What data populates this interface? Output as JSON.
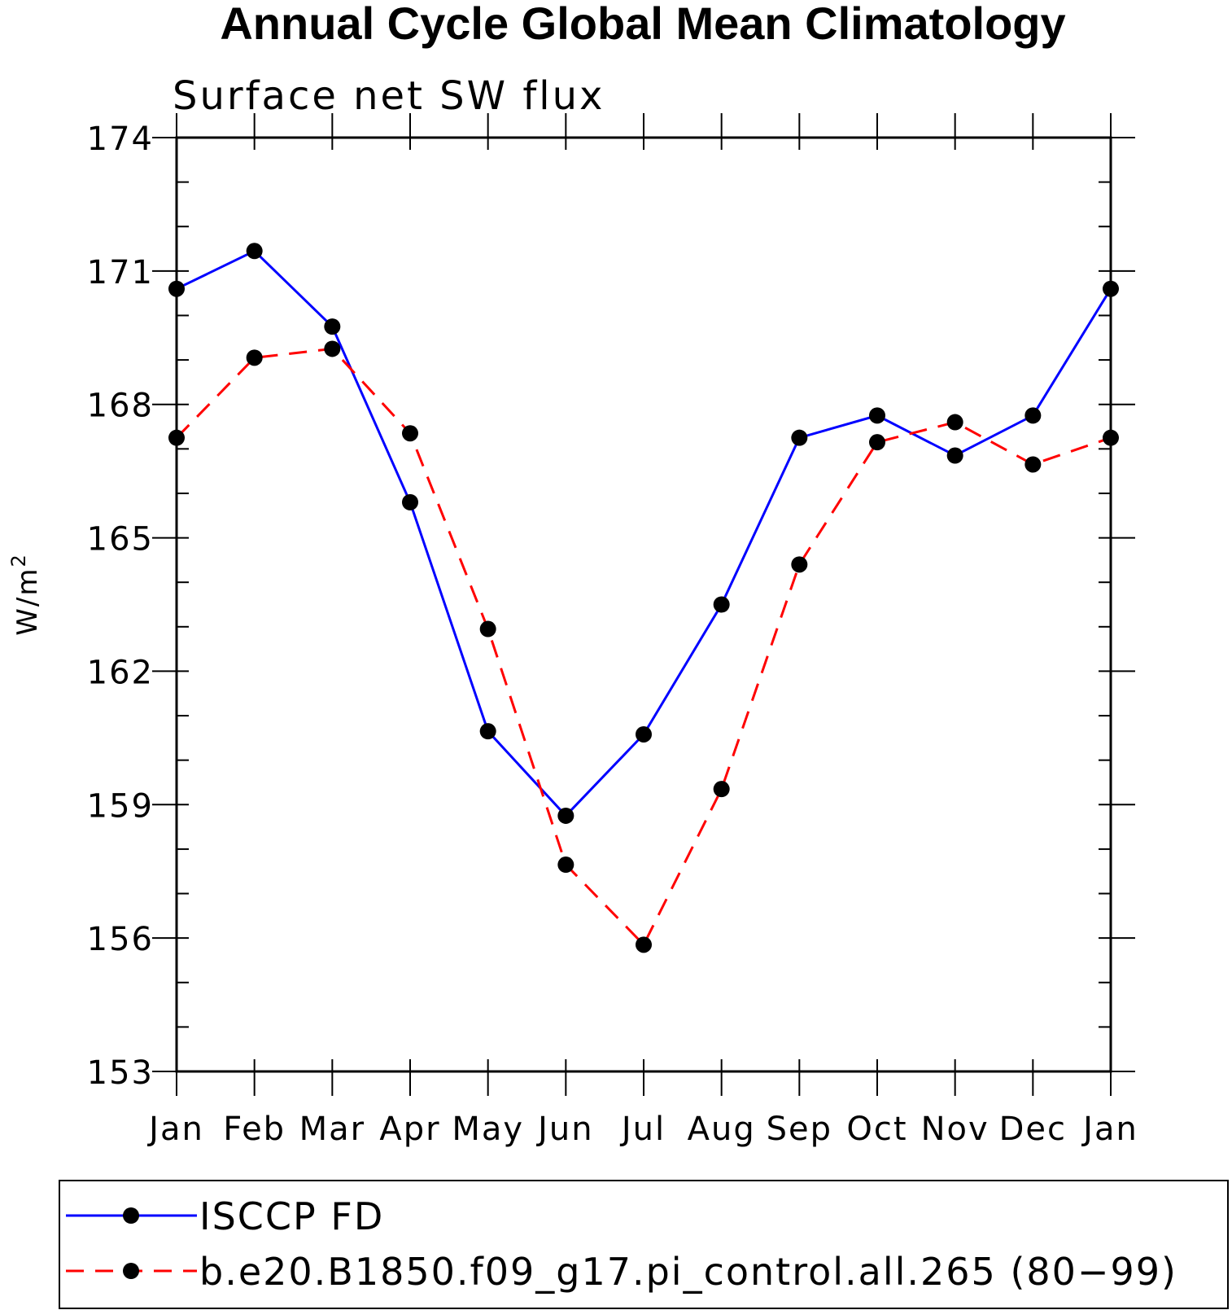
{
  "chart_data": {
    "type": "line",
    "title": "Annual Cycle Global Mean Climatology",
    "subtitle": "Surface net SW flux",
    "ylabel_base": "W/m",
    "ylabel_sup": "2",
    "xlabel": "",
    "categories": [
      "Jan",
      "Feb",
      "Mar",
      "Apr",
      "May",
      "Jun",
      "Jul",
      "Aug",
      "Sep",
      "Oct",
      "Nov",
      "Dec",
      "Jan"
    ],
    "yticks": [
      153,
      156,
      159,
      162,
      165,
      168,
      171,
      174
    ],
    "ylim": [
      153,
      174
    ],
    "grid": false,
    "legend_position": "bottom",
    "series": [
      {
        "name": "ISCCP FD",
        "color": "#0000ff",
        "dash": "solid",
        "values": [
          170.6,
          171.45,
          169.75,
          165.8,
          160.65,
          158.75,
          160.58,
          163.5,
          167.25,
          167.75,
          166.85,
          167.75,
          170.6
        ]
      },
      {
        "name": "b.e20.B1850.f09_g17.pi_control.all.265 (80−99)",
        "color": "#ff0000",
        "dash": "dashed",
        "values": [
          167.25,
          169.05,
          169.25,
          167.35,
          162.95,
          157.65,
          155.85,
          159.35,
          164.4,
          167.15,
          167.6,
          166.65,
          167.25
        ]
      }
    ]
  }
}
